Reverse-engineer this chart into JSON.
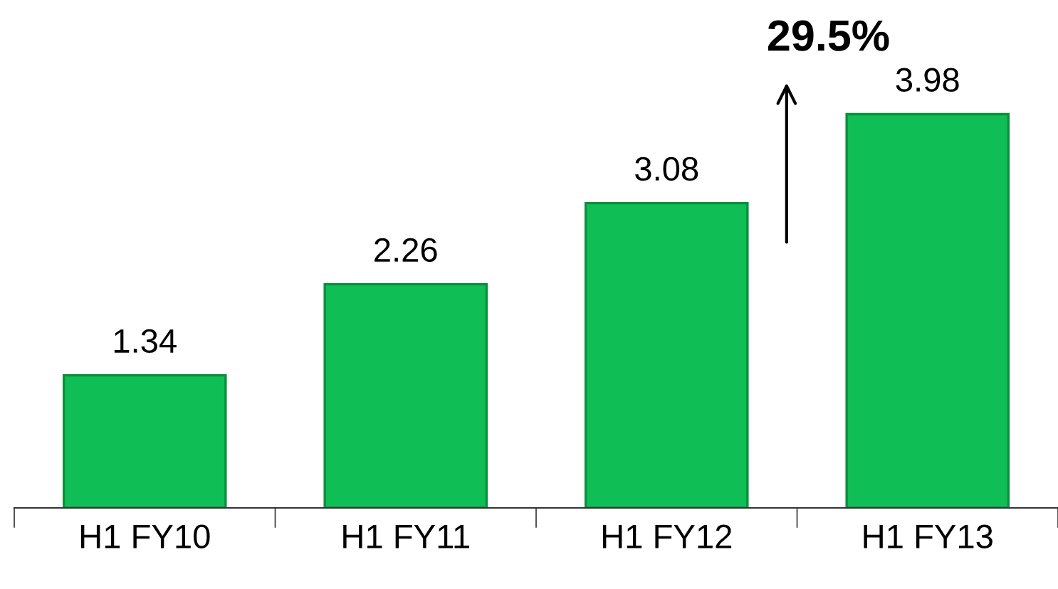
{
  "chart_data": {
    "type": "bar",
    "categories": [
      "H1 FY10",
      "H1 FY11",
      "H1 FY12",
      "H1 FY13"
    ],
    "values": [
      1.34,
      2.26,
      3.08,
      3.98
    ],
    "color": "#0fbf55",
    "data_labels": true,
    "annotations": [
      "29.5%"
    ]
  }
}
